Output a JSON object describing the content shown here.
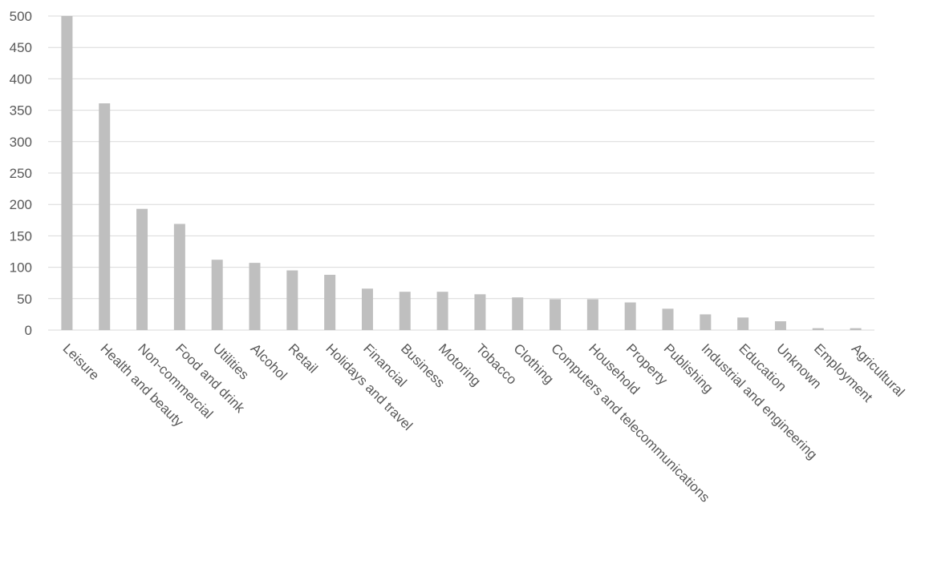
{
  "chart_data": {
    "type": "bar",
    "title": "",
    "xlabel": "",
    "ylabel": "",
    "ylim": [
      0,
      500
    ],
    "yticks": [
      0,
      50,
      100,
      150,
      200,
      250,
      300,
      350,
      400,
      450,
      500
    ],
    "grid": true,
    "legend": "none",
    "bar_color": "#bfbfbf",
    "categories": [
      "Leisure",
      "Health and beauty",
      "Non-commercial",
      "Food and drink",
      "Utilities",
      "Alcohol",
      "Retail",
      "Holidays and travel",
      "Financial",
      "Business",
      "Motoring",
      "Tobacco",
      "Clothing",
      "Computers and telecommunications",
      "Household",
      "Property",
      "Publishing",
      "Industrial and engineering",
      "Education",
      "Unknown",
      "Employment",
      "Agricultural"
    ],
    "values": [
      500,
      361,
      193,
      169,
      112,
      107,
      95,
      88,
      66,
      61,
      61,
      57,
      52,
      49,
      49,
      44,
      34,
      25,
      20,
      14,
      3,
      3
    ]
  }
}
